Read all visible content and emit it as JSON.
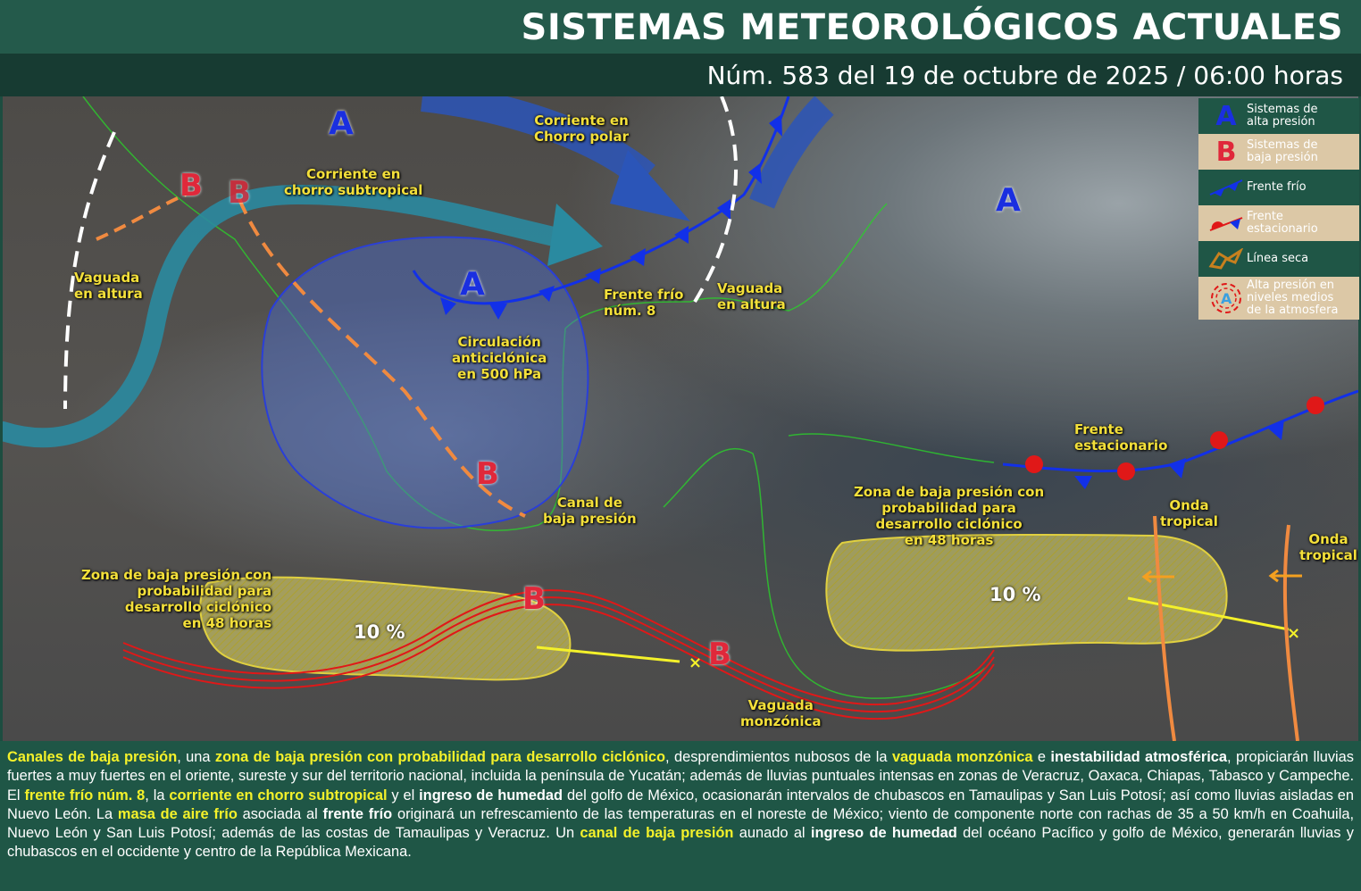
{
  "header": {
    "title": "SISTEMAS METEOROLÓGICOS ACTUALES",
    "subtitle": "Núm. 583 del 19 de octubre de 2025 / 06:00 horas"
  },
  "map": {
    "labels": {
      "polar_jet": "Corriente en\nChorro polar",
      "subtropical_jet": "Corriente en\nchorro subtropical",
      "trough_west": "Vaguada\nen altura",
      "trough_gulf": "Vaguada\nen altura",
      "cold_front": "Frente frío\nnúm. 8",
      "anticyclone": "Circulación\nanticiclónica\nen 500 hPa",
      "canal": "Canal de\nbaja presión",
      "zone_pacific": "Zona de baja presión con\nprobabilidad para\ndesarrollo ciclónico\nen 48 horas",
      "zone_caribbean": "Zona de baja presión con\nprobabilidad para\ndesarrollo ciclónico\nen 48 horas",
      "stationary_front": "Frente\nestacionario",
      "wave1": "Onda\ntropical",
      "wave2": "Onda\ntropical",
      "monsoon": "Vaguada\nmonzónica",
      "pct_pacific": "10 %",
      "pct_caribbean": "10 %"
    },
    "high_letter": "A",
    "low_letter": "B"
  },
  "legend": [
    {
      "icon": "high-pressure-icon",
      "label": "Sistemas de\nalta presión"
    },
    {
      "icon": "low-pressure-icon",
      "label": "Sistemas de\nbaja presión"
    },
    {
      "icon": "cold-front-icon",
      "label": "Frente frío"
    },
    {
      "icon": "stationary-front-icon",
      "label": "Frente\nestacionario"
    },
    {
      "icon": "dry-line-icon",
      "label": "Línea seca"
    },
    {
      "icon": "mid-level-high-icon",
      "label": "Alta presión en\nniveles medios\nde la atmosfera"
    }
  ],
  "colors": {
    "header": "#245a4b",
    "highlight": "#f4f12a",
    "high": "#1a2fe0",
    "low": "#e0283a",
    "legend_alt": "#dcc8a6"
  },
  "summary": [
    [
      "y",
      "Canales de baja presión"
    ],
    [
      "n",
      ", una "
    ],
    [
      "y",
      "zona de baja presión con probabilidad para desarrollo ciclónico"
    ],
    [
      "n",
      ", desprendimientos nubosos de la "
    ],
    [
      "y",
      "vaguada monzónica"
    ],
    [
      "n",
      " e "
    ],
    [
      "b",
      "inestabilidad atmosférica"
    ],
    [
      "n",
      ", propiciarán lluvias fuertes a muy fuertes en el oriente, sureste y sur del territorio nacional, incluida la península de Yucatán; además de lluvias puntuales intensas en zonas de Veracruz, Oaxaca, Chiapas, Tabasco y Campeche. El "
    ],
    [
      "y",
      "frente frío núm. 8"
    ],
    [
      "n",
      ", la "
    ],
    [
      "y",
      "corriente en chorro subtropical"
    ],
    [
      "n",
      " y el "
    ],
    [
      "b",
      "ingreso de humedad"
    ],
    [
      "n",
      " del golfo de México, ocasionarán intervalos de chubascos en Tamaulipas y San Luis Potosí; así como lluvias aisladas en Nuevo León. La "
    ],
    [
      "y",
      "masa de aire frío"
    ],
    [
      "n",
      " asociada al "
    ],
    [
      "b",
      "frente frío"
    ],
    [
      "n",
      " originará un refrescamiento de las temperaturas en el noreste de México; viento de componente norte con rachas de 35 a 50 km/h en Coahuila, Nuevo León y San Luis Potosí; además de las costas de Tamaulipas y Veracruz. Un "
    ],
    [
      "y",
      "canal de baja presión"
    ],
    [
      "n",
      " aunado al "
    ],
    [
      "b",
      "ingreso de humedad"
    ],
    [
      "n",
      " del océano Pacífico y golfo de México, generarán lluvias y chubascos en el occidente y centro de la República Mexicana."
    ]
  ]
}
